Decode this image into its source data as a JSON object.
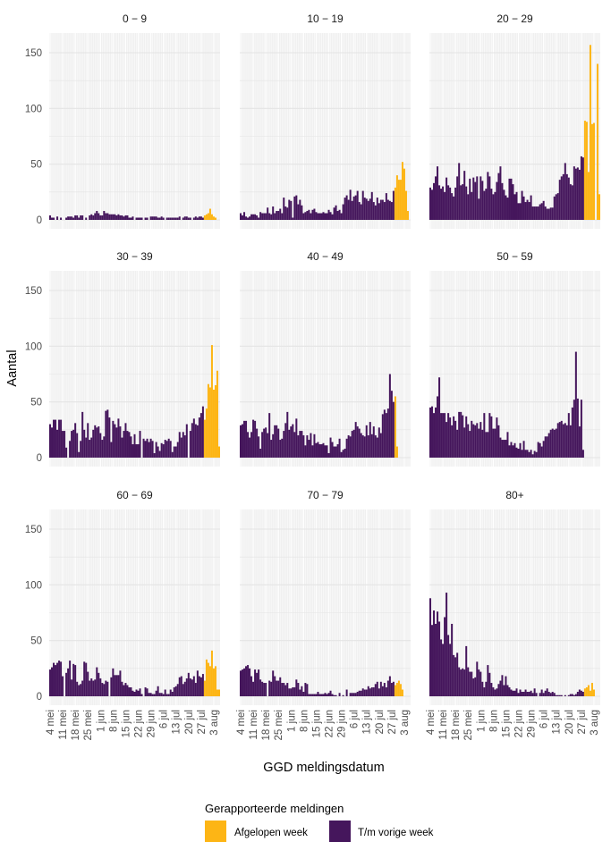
{
  "chart_data": {
    "type": "bar",
    "facet": "small-multiples 3x3, shared axes",
    "xlabel": "GGD meldingsdatum",
    "ylabel": "Aantal",
    "ylim": [
      0,
      167
    ],
    "yticks": [
      0,
      50,
      100,
      150
    ],
    "start_date": "4 mei",
    "days": 95,
    "xtick_labels": [
      "4 mei",
      "11 mei",
      "18 mei",
      "25 mei",
      "1 jun",
      "8 jun",
      "15 jun",
      "22 jun",
      "29 jun",
      "6 jul",
      "13 jul",
      "20 jul",
      "27 jul",
      "3 aug"
    ],
    "xtick_day_index": [
      0,
      7,
      14,
      21,
      28,
      35,
      42,
      49,
      56,
      63,
      70,
      77,
      84,
      91
    ],
    "grid": true,
    "legend": {
      "title": "Gerapporteerde meldingen",
      "position": "bottom",
      "entries": [
        {
          "name": "Afgelopen week",
          "color": "#FDB515"
        },
        {
          "name": "T/m vorige week",
          "color": "#45165C"
        }
      ]
    },
    "orange_from_index": 86,
    "panels": [
      {
        "title": "0 − 9",
        "values": [
          4,
          2,
          2,
          0,
          3,
          0,
          2,
          0,
          0,
          2,
          3,
          3,
          3,
          2,
          4,
          4,
          2,
          4,
          4,
          0,
          2,
          0,
          4,
          5,
          4,
          6,
          8,
          6,
          4,
          4,
          8,
          6,
          6,
          5,
          5,
          5,
          5,
          4,
          5,
          4,
          4,
          3,
          4,
          4,
          2,
          2,
          3,
          0,
          2,
          2,
          2,
          2,
          0,
          2,
          2,
          0,
          3,
          3,
          3,
          3,
          2,
          2,
          3,
          2,
          0,
          2,
          2,
          2,
          2,
          2,
          2,
          2,
          3,
          0,
          2,
          3,
          3,
          2,
          2,
          0,
          2,
          3,
          2,
          3,
          3,
          2,
          4,
          5,
          6,
          10,
          5,
          3,
          2,
          0,
          0
        ]
      },
      {
        "title": "10 − 19",
        "values": [
          6,
          4,
          7,
          3,
          2,
          3,
          5,
          5,
          5,
          4,
          2,
          7,
          6,
          6,
          6,
          11,
          6,
          5,
          12,
          6,
          8,
          8,
          10,
          6,
          20,
          12,
          11,
          18,
          17,
          2,
          21,
          22,
          14,
          18,
          13,
          6,
          7,
          8,
          9,
          6,
          9,
          10,
          7,
          6,
          6,
          6,
          7,
          6,
          6,
          9,
          7,
          5,
          11,
          13,
          8,
          9,
          6,
          14,
          20,
          22,
          18,
          27,
          17,
          21,
          22,
          26,
          16,
          14,
          26,
          20,
          19,
          17,
          19,
          25,
          16,
          13,
          20,
          15,
          18,
          18,
          16,
          24,
          18,
          17,
          16,
          26,
          29,
          40,
          36,
          36,
          52,
          46,
          26,
          8,
          0
        ]
      },
      {
        "title": "20 − 29",
        "values": [
          29,
          27,
          33,
          39,
          48,
          31,
          28,
          30,
          25,
          38,
          31,
          29,
          24,
          21,
          29,
          39,
          51,
          31,
          32,
          44,
          30,
          23,
          37,
          25,
          38,
          34,
          39,
          19,
          39,
          35,
          26,
          28,
          43,
          39,
          28,
          23,
          25,
          34,
          42,
          48,
          33,
          27,
          22,
          20,
          37,
          37,
          32,
          23,
          25,
          15,
          15,
          26,
          21,
          16,
          18,
          16,
          22,
          12,
          12,
          12,
          12,
          14,
          15,
          17,
          12,
          10,
          10,
          11,
          11,
          21,
          23,
          24,
          36,
          39,
          41,
          51,
          41,
          38,
          32,
          31,
          48,
          46,
          47,
          45,
          57,
          56,
          89,
          88,
          43,
          157,
          86,
          87,
          0,
          140,
          23
        ]
      },
      {
        "title": "30 − 39",
        "values": [
          30,
          27,
          34,
          34,
          25,
          34,
          34,
          24,
          24,
          9,
          0,
          15,
          24,
          25,
          31,
          22,
          5,
          15,
          41,
          25,
          18,
          31,
          16,
          18,
          25,
          29,
          27,
          28,
          22,
          16,
          19,
          42,
          43,
          36,
          14,
          33,
          30,
          27,
          35,
          28,
          18,
          24,
          31,
          24,
          23,
          19,
          12,
          21,
          12,
          12,
          24,
          0,
          17,
          15,
          17,
          14,
          17,
          15,
          4,
          14,
          10,
          6,
          13,
          12,
          16,
          15,
          17,
          15,
          5,
          10,
          10,
          14,
          23,
          18,
          23,
          20,
          30,
          0,
          24,
          31,
          35,
          30,
          29,
          36,
          40,
          46,
          34,
          44,
          66,
          63,
          101,
          61,
          65,
          78,
          10
        ]
      },
      {
        "title": "40 − 49",
        "values": [
          29,
          30,
          33,
          33,
          23,
          18,
          23,
          34,
          33,
          26,
          19,
          8,
          23,
          26,
          27,
          22,
          40,
          16,
          21,
          29,
          29,
          26,
          16,
          17,
          24,
          31,
          41,
          25,
          28,
          30,
          23,
          35,
          20,
          24,
          24,
          20,
          11,
          20,
          16,
          22,
          11,
          21,
          13,
          14,
          12,
          12,
          13,
          11,
          11,
          4,
          18,
          14,
          10,
          10,
          12,
          17,
          5,
          7,
          8,
          17,
          20,
          19,
          24,
          25,
          32,
          28,
          26,
          22,
          20,
          19,
          29,
          20,
          32,
          21,
          28,
          20,
          18,
          27,
          22,
          39,
          43,
          40,
          44,
          75,
          60,
          50,
          55,
          10,
          0,
          0,
          0,
          0,
          0,
          0,
          0
        ]
      },
      {
        "title": "50 − 59",
        "values": [
          45,
          46,
          40,
          45,
          55,
          72,
          40,
          40,
          40,
          32,
          40,
          36,
          29,
          37,
          33,
          25,
          41,
          41,
          38,
          27,
          37,
          30,
          24,
          33,
          30,
          29,
          31,
          26,
          32,
          25,
          40,
          23,
          23,
          40,
          37,
          26,
          26,
          36,
          29,
          18,
          16,
          16,
          16,
          23,
          11,
          14,
          11,
          13,
          9,
          8,
          13,
          7,
          15,
          7,
          7,
          5,
          7,
          3,
          6,
          5,
          14,
          13,
          10,
          15,
          19,
          19,
          22,
          25,
          26,
          25,
          26,
          31,
          32,
          33,
          30,
          31,
          29,
          40,
          29,
          45,
          52,
          95,
          53,
          28,
          52,
          7,
          0,
          0,
          0,
          0,
          0,
          0,
          0,
          0,
          0
        ]
      },
      {
        "title": "60 − 69",
        "values": [
          24,
          26,
          30,
          28,
          30,
          32,
          31,
          18,
          0,
          21,
          25,
          32,
          15,
          29,
          28,
          13,
          10,
          11,
          14,
          31,
          30,
          22,
          14,
          16,
          14,
          15,
          26,
          21,
          16,
          12,
          11,
          14,
          13,
          0,
          17,
          25,
          19,
          19,
          19,
          23,
          13,
          10,
          12,
          10,
          8,
          8,
          5,
          4,
          6,
          5,
          7,
          2,
          0,
          8,
          7,
          3,
          3,
          2,
          2,
          5,
          9,
          3,
          3,
          2,
          6,
          2,
          2,
          6,
          4,
          8,
          9,
          11,
          17,
          18,
          11,
          13,
          16,
          21,
          16,
          15,
          18,
          12,
          23,
          18,
          17,
          20,
          14,
          33,
          30,
          27,
          41,
          25,
          27,
          6,
          6
        ]
      },
      {
        "title": "70 − 79",
        "values": [
          23,
          24,
          25,
          27,
          28,
          25,
          18,
          13,
          24,
          21,
          24,
          15,
          13,
          12,
          12,
          0,
          14,
          13,
          23,
          18,
          14,
          14,
          17,
          12,
          12,
          10,
          12,
          7,
          7,
          8,
          8,
          15,
          12,
          6,
          9,
          4,
          12,
          11,
          2,
          2,
          2,
          2,
          2,
          4,
          2,
          2,
          2,
          3,
          2,
          3,
          5,
          2,
          1,
          1,
          0,
          3,
          0,
          1,
          0,
          6,
          0,
          3,
          3,
          3,
          3,
          4,
          5,
          5,
          7,
          6,
          6,
          9,
          7,
          8,
          8,
          11,
          13,
          7,
          13,
          9,
          12,
          8,
          14,
          18,
          12,
          13,
          10,
          12,
          14,
          11,
          6,
          0,
          0,
          0,
          0
        ]
      },
      {
        "title": "80+",
        "values": [
          88,
          64,
          77,
          65,
          76,
          67,
          51,
          47,
          71,
          93,
          55,
          47,
          65,
          37,
          35,
          39,
          26,
          24,
          25,
          24,
          45,
          26,
          22,
          22,
          16,
          17,
          31,
          24,
          22,
          13,
          8,
          13,
          28,
          21,
          12,
          8,
          6,
          7,
          11,
          14,
          19,
          10,
          18,
          10,
          8,
          6,
          5,
          5,
          7,
          3,
          6,
          4,
          4,
          6,
          4,
          4,
          5,
          3,
          7,
          3,
          0,
          3,
          6,
          3,
          5,
          7,
          4,
          3,
          4,
          3,
          1,
          1,
          1,
          1,
          0,
          1,
          0,
          1,
          2,
          2,
          1,
          2,
          4,
          6,
          5,
          4,
          7,
          8,
          10,
          5,
          12,
          6,
          0,
          0,
          0
        ]
      }
    ]
  }
}
